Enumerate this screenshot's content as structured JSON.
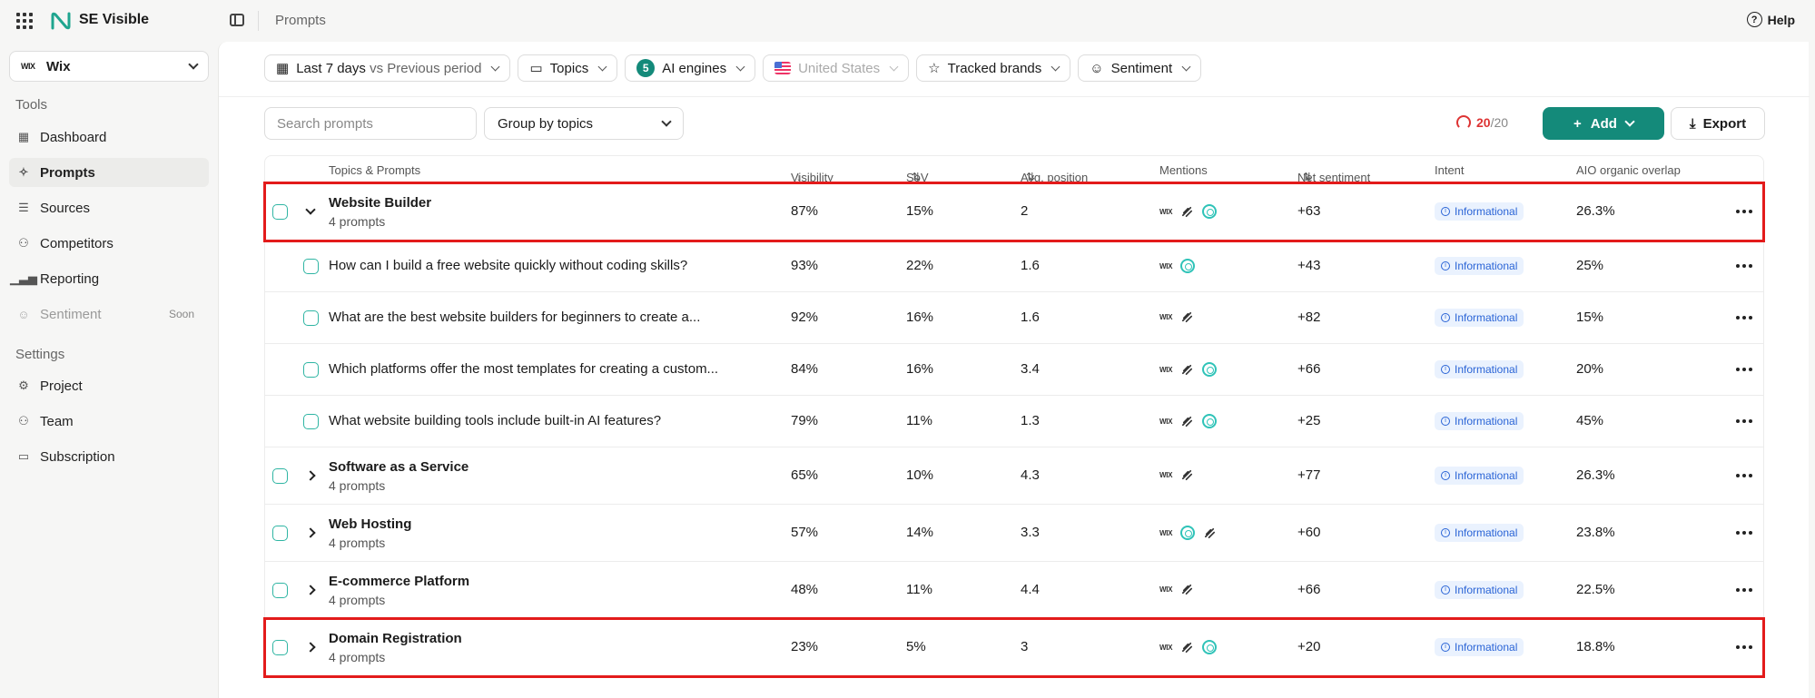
{
  "app": {
    "name": "SE Visible",
    "breadcrumb": "Prompts",
    "help_label": "Help"
  },
  "sidebar": {
    "workspace": {
      "logo_text": "WIX",
      "name": "Wix"
    },
    "tools_title": "Tools",
    "settings_title": "Settings",
    "tools": [
      {
        "label": "Dashboard",
        "icon": "grid-icon"
      },
      {
        "label": "Prompts",
        "icon": "sparkle-icon",
        "active": true
      },
      {
        "label": "Sources",
        "icon": "list-icon"
      },
      {
        "label": "Competitors",
        "icon": "users-icon"
      },
      {
        "label": "Reporting",
        "icon": "bar-chart-icon"
      },
      {
        "label": "Sentiment",
        "icon": "smile-icon",
        "disabled": true,
        "tag": "Soon"
      }
    ],
    "settings": [
      {
        "label": "Project",
        "icon": "gear-icon"
      },
      {
        "label": "Team",
        "icon": "team-icon"
      },
      {
        "label": "Subscription",
        "icon": "card-icon"
      }
    ]
  },
  "filters": {
    "period": {
      "bold": "Last 7 days",
      "muted": "vs Previous period"
    },
    "topics": "Topics",
    "ai_engines": {
      "count": "5",
      "label": "AI engines"
    },
    "country": "United States",
    "tracked_brands": "Tracked brands",
    "sentiment": "Sentiment"
  },
  "toolbar": {
    "search_placeholder": "Search prompts",
    "group_by": "Group by topics",
    "quota_used": "20",
    "quota_total": "/20",
    "add_label": "Add",
    "export_label": "Export"
  },
  "table": {
    "columns": {
      "topics": "Topics & Prompts",
      "visibility": "Visibility",
      "sov": "SoV",
      "avg_position": "Avg. position",
      "mentions": "Mentions",
      "net_sentiment": "Net sentiment",
      "intent": "Intent",
      "aio": "AIO organic overlap"
    },
    "rows": [
      {
        "kind": "topic",
        "expanded": true,
        "highlight": true,
        "name": "Website Builder",
        "sub": "4 prompts",
        "visibility": "87%",
        "sov": "15%",
        "avg": "2",
        "mentions": [
          "wix",
          "squarespace",
          "openai"
        ],
        "sentiment": "+63",
        "intent": "Informational",
        "aio": "26.3%"
      },
      {
        "kind": "prompt",
        "name": "How can I build a free website quickly without coding skills?",
        "visibility": "93%",
        "sov": "22%",
        "avg": "1.6",
        "mentions": [
          "wix",
          "openai"
        ],
        "sentiment": "+43",
        "intent": "Informational",
        "aio": "25%"
      },
      {
        "kind": "prompt",
        "name": "What are the best website builders for beginners to create a...",
        "visibility": "92%",
        "sov": "16%",
        "avg": "1.6",
        "mentions": [
          "wix",
          "squarespace"
        ],
        "sentiment": "+82",
        "intent": "Informational",
        "aio": "15%"
      },
      {
        "kind": "prompt",
        "name": "Which platforms offer the most templates for creating a custom...",
        "visibility": "84%",
        "sov": "16%",
        "avg": "3.4",
        "mentions": [
          "wix",
          "squarespace",
          "openai"
        ],
        "sentiment": "+66",
        "intent": "Informational",
        "aio": "20%"
      },
      {
        "kind": "prompt",
        "name": "What website building tools include built-in AI features?",
        "visibility": "79%",
        "sov": "11%",
        "avg": "1.3",
        "mentions": [
          "wix",
          "squarespace",
          "openai"
        ],
        "sentiment": "+25",
        "intent": "Informational",
        "aio": "45%"
      },
      {
        "kind": "topic",
        "expanded": false,
        "name": "Software as a Service",
        "sub": "4 prompts",
        "visibility": "65%",
        "sov": "10%",
        "avg": "4.3",
        "mentions": [
          "wix",
          "squarespace"
        ],
        "sentiment": "+77",
        "intent": "Informational",
        "aio": "26.3%"
      },
      {
        "kind": "topic",
        "expanded": false,
        "name": "Web Hosting",
        "sub": "4 prompts",
        "visibility": "57%",
        "sov": "14%",
        "avg": "3.3",
        "mentions": [
          "wix",
          "openai",
          "squarespace"
        ],
        "sentiment": "+60",
        "intent": "Informational",
        "aio": "23.8%"
      },
      {
        "kind": "topic",
        "expanded": false,
        "name": "E-commerce Platform",
        "sub": "4 prompts",
        "visibility": "48%",
        "sov": "11%",
        "avg": "4.4",
        "mentions": [
          "wix",
          "squarespace"
        ],
        "sentiment": "+66",
        "intent": "Informational",
        "aio": "22.5%"
      },
      {
        "kind": "topic",
        "expanded": false,
        "highlight": true,
        "name": "Domain Registration",
        "sub": "4 prompts",
        "visibility": "23%",
        "sov": "5%",
        "avg": "3",
        "mentions": [
          "wix",
          "squarespace",
          "openai"
        ],
        "sentiment": "+20",
        "intent": "Informational",
        "aio": "18.8%"
      }
    ]
  },
  "colors": {
    "brand": "#148a7a",
    "highlight": "#e31b1b",
    "intent_bg": "#eaf2fe",
    "intent_text": "#2a64d6",
    "quota": "#d33333"
  }
}
